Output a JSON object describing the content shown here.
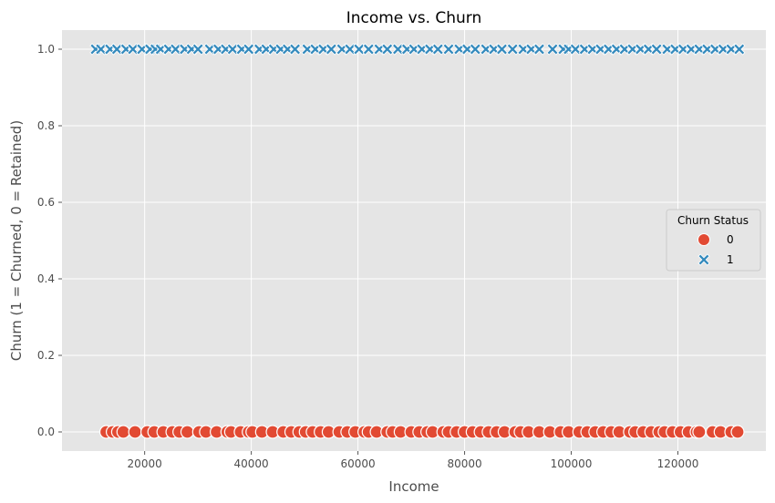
{
  "chart_data": {
    "type": "scatter",
    "title": "Income vs. Churn",
    "xlabel": "Income",
    "ylabel": "Churn (1 = Churned, 0 = Retained)",
    "xlim": [
      4500,
      136500
    ],
    "ylim": [
      -0.05,
      1.05
    ],
    "x_ticks": [
      20000,
      40000,
      60000,
      80000,
      100000,
      120000
    ],
    "x_tick_labels": [
      "20000",
      "40000",
      "60000",
      "80000",
      "100000",
      "120000"
    ],
    "y_ticks": [
      0.0,
      0.2,
      0.4,
      0.6,
      0.8,
      1.0
    ],
    "y_tick_labels": [
      "0.0",
      "0.2",
      "0.4",
      "0.6",
      "0.8",
      "1.0"
    ],
    "grid": true,
    "legend": {
      "title": "Churn Status",
      "position": "center-right",
      "entries": [
        {
          "label": "0",
          "marker": "circle",
          "color": "#e24a33"
        },
        {
          "label": "1",
          "marker": "x",
          "color": "#348abd"
        }
      ]
    },
    "series": [
      {
        "name": "0",
        "marker": "circle",
        "color": "#e24a33",
        "y": 0,
        "x": [
          12800,
          14000,
          15000,
          16000,
          18200,
          20500,
          21800,
          23500,
          25200,
          26500,
          28000,
          30200,
          31500,
          33500,
          35500,
          36200,
          38000,
          39500,
          40200,
          42000,
          44000,
          46000,
          47500,
          49000,
          50200,
          51500,
          53000,
          54500,
          56500,
          58000,
          59500,
          61200,
          62000,
          63500,
          65500,
          66500,
          68000,
          70000,
          71500,
          73000,
          74000,
          76000,
          77000,
          78500,
          80000,
          81500,
          83000,
          84500,
          86000,
          87500,
          89500,
          90500,
          92000,
          94000,
          96000,
          98000,
          99500,
          101500,
          103000,
          104500,
          106000,
          107500,
          109000,
          111000,
          112000,
          113500,
          115000,
          116500,
          117500,
          119000,
          120500,
          122000,
          123500,
          124000,
          126500,
          128000,
          130000,
          131200
        ]
      },
      {
        "name": "1",
        "marker": "x",
        "color": "#348abd",
        "y": 1,
        "x": [
          10800,
          11800,
          13500,
          14800,
          16500,
          17800,
          19500,
          21000,
          22000,
          23000,
          24500,
          25800,
          27500,
          28800,
          30000,
          32200,
          33800,
          35200,
          36500,
          38200,
          39500,
          41500,
          42800,
          44200,
          45500,
          46800,
          48200,
          50500,
          52000,
          53500,
          55000,
          57000,
          58500,
          60200,
          62000,
          64000,
          65500,
          67500,
          69200,
          70500,
          72000,
          73500,
          75000,
          77000,
          79000,
          80500,
          82000,
          84000,
          85500,
          87000,
          89000,
          91000,
          92500,
          94000,
          96500,
          98500,
          99500,
          100800,
          102500,
          104000,
          105500,
          107000,
          108500,
          110000,
          111500,
          113000,
          114500,
          116000,
          118000,
          119500,
          121000,
          122500,
          124000,
          125500,
          127000,
          128500,
          130000,
          131500
        ]
      }
    ]
  }
}
